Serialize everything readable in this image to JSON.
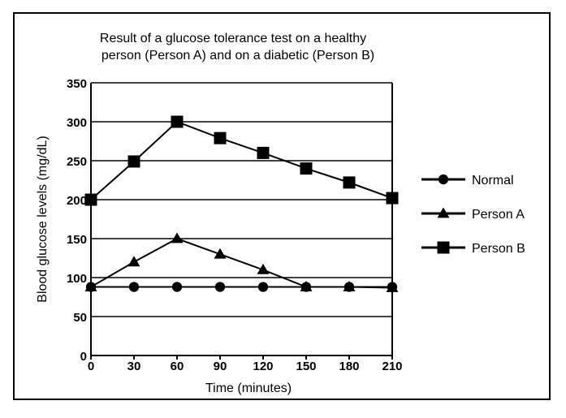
{
  "chart_data": {
    "type": "line",
    "title": "Result of a glucose tolerance test on a healthy person (Person A) and on a diabetic (Person B)",
    "title_lines": [
      "Result of a glucose tolerance test on a healthy",
      "person (Person A) and on a diabetic (Person B)"
    ],
    "xlabel": "Time (minutes)",
    "ylabel": "Blood glucose levels (mg/dL)",
    "x": [
      0,
      30,
      60,
      90,
      120,
      150,
      180,
      210
    ],
    "x_tick_labels": [
      "0",
      "30",
      "60",
      "90",
      "120",
      "150",
      "180",
      "210"
    ],
    "y_tick_labels": [
      "0",
      "50",
      "100",
      "150",
      "200",
      "250",
      "300",
      "350"
    ],
    "xlim": [
      0,
      210
    ],
    "ylim": [
      0,
      350
    ],
    "grid": "horizontal",
    "legend_position": "right",
    "series": [
      {
        "name": "Normal",
        "marker": "circle",
        "values": [
          88,
          88,
          88,
          88,
          88,
          88,
          88,
          88
        ]
      },
      {
        "name": "Person A",
        "marker": "triangle",
        "values": [
          88,
          120,
          150,
          130,
          110,
          88,
          88,
          87
        ]
      },
      {
        "name": "Person B",
        "marker": "square",
        "values": [
          200,
          249,
          300,
          279,
          260,
          240,
          222,
          202
        ]
      }
    ],
    "colors": {
      "line": "#000000",
      "background": "#ffffff"
    }
  }
}
